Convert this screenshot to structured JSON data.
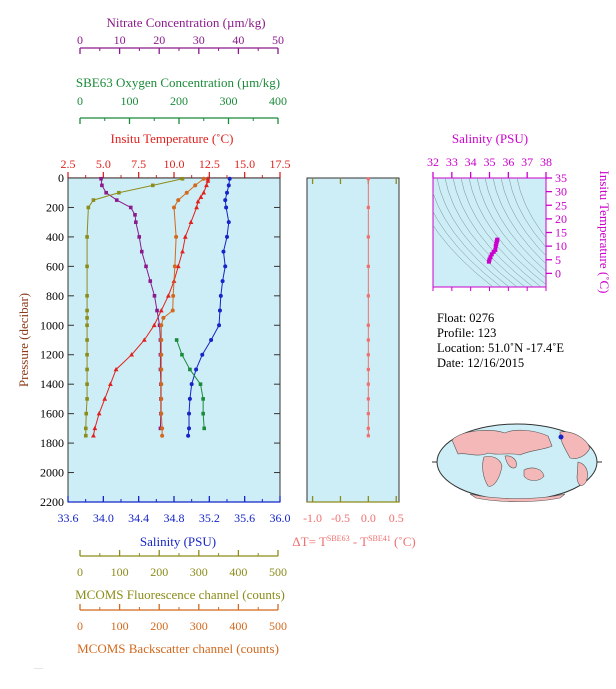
{
  "colors": {
    "nitrate": "#8b1a8b",
    "oxygen": "#1b8a3a",
    "temperature": "#e0221f",
    "salinity_main": "#1525c8",
    "salinity_ts": "#cc00cc",
    "fluorescence": "#8c8c1a",
    "backscatter": "#d2691e",
    "delta_t": "#f07070",
    "plot_bg": "#cdeef6",
    "land": "#f4b8b8",
    "ocean": "#cdeef6"
  },
  "top_axes": {
    "nitrate": {
      "title": "Nitrate Concentration (µm/kg)",
      "ticks": [
        "0",
        "10",
        "20",
        "30",
        "40",
        "50"
      ]
    },
    "oxygen": {
      "title": "SBE63 Oxygen Concentration (µm/kg)",
      "ticks": [
        "0",
        "100",
        "200",
        "300",
        "400"
      ]
    },
    "temperature": {
      "title": "Insitu Temperature (˚C)",
      "ticks": [
        "2.5",
        "5.0",
        "7.5",
        "10.0",
        "12.5",
        "15.0",
        "17.5"
      ]
    }
  },
  "bottom_axes": {
    "salinity": {
      "title": "Salinity (PSU)",
      "ticks": [
        "33.6",
        "34.0",
        "34.4",
        "34.8",
        "35.2",
        "35.6",
        "36.0"
      ]
    },
    "fluorescence": {
      "title": "MCOMS Fluorescence channel (counts)",
      "ticks": [
        "0",
        "100",
        "200",
        "300",
        "400",
        "500"
      ]
    },
    "backscatter": {
      "title": "MCOMS Backscatter channel (counts)",
      "ticks": [
        "0",
        "100",
        "200",
        "300",
        "400",
        "500"
      ]
    }
  },
  "pressure_axis": {
    "title": "Pressure (decibar)",
    "ticks": [
      "0",
      "200",
      "400",
      "600",
      "800",
      "1000",
      "1200",
      "1400",
      "1600",
      "1800",
      "2000",
      "2200"
    ]
  },
  "delta_t_axis": {
    "title_main": "ΔT= T",
    "sup1": "SBE63",
    "mid": " - T",
    "sup2": "SBE41",
    "unit": " (˚C)",
    "ticks": [
      "-1.0",
      "-0.5",
      "0.0",
      "0.5"
    ]
  },
  "ts_plot": {
    "top_title": "Salinity (PSU)",
    "top_ticks": [
      "32",
      "33",
      "34",
      "35",
      "36",
      "37",
      "38"
    ],
    "right_title": "Insitu Temperature (˚C)",
    "right_ticks": [
      "35",
      "30",
      "25",
      "20",
      "15",
      "10",
      "5",
      "0"
    ]
  },
  "info": {
    "float_line": "Float:  0276",
    "profile_line": "Profile:  123",
    "location_line": "Location:  51.0˚N  -17.4˚E",
    "date_line": "Date:  12/16/2015"
  },
  "chart_data": [
    {
      "type": "line",
      "title": "",
      "ylabel": "Pressure (decibar)",
      "ylim": [
        2200,
        0
      ],
      "series": [
        {
          "name": "Insitu Temperature (˚C)",
          "axis": "temperature",
          "xlim": [
            2.5,
            17.5
          ],
          "pressure": [
            5,
            20,
            50,
            100,
            130,
            160,
            200,
            300,
            400,
            500,
            600,
            700,
            800,
            900,
            1000,
            1100,
            1200,
            1300,
            1400,
            1500,
            1600,
            1700,
            1750
          ],
          "values": [
            12.4,
            12.4,
            12.3,
            12.1,
            11.9,
            11.7,
            11.6,
            11.2,
            10.8,
            10.6,
            10.3,
            10.0,
            9.6,
            9.1,
            8.6,
            7.9,
            7.0,
            5.9,
            5.5,
            5.1,
            4.7,
            4.4,
            4.3
          ]
        },
        {
          "name": "Salinity (PSU)",
          "axis": "salinity",
          "xlim": [
            33.6,
            36.0
          ],
          "pressure": [
            5,
            50,
            100,
            150,
            200,
            300,
            400,
            500,
            600,
            700,
            800,
            900,
            1000,
            1100,
            1200,
            1300,
            1400,
            1500,
            1600,
            1700,
            1750
          ],
          "values": [
            35.43,
            35.42,
            35.4,
            35.38,
            35.39,
            35.42,
            35.4,
            35.36,
            35.38,
            35.35,
            35.33,
            35.32,
            35.31,
            35.22,
            35.12,
            35.05,
            35.0,
            34.98,
            34.97,
            34.97,
            34.96
          ]
        },
        {
          "name": "Nitrate Concentration (µm/kg)",
          "axis": "nitrate",
          "xlim": [
            0,
            50
          ],
          "pressure": [
            5,
            50,
            100,
            150,
            200,
            250,
            300,
            400,
            500,
            600,
            700,
            800,
            900,
            1000,
            1100,
            1200,
            1300,
            1400,
            1500,
            1600,
            1700
          ],
          "values": [
            7.8,
            8.0,
            9.0,
            11.5,
            14.8,
            15.8,
            16.0,
            16.8,
            17.4,
            18.4,
            19.4,
            20.4,
            21.0,
            21.6,
            21.8,
            21.8,
            21.8,
            21.9,
            21.9,
            21.9,
            21.8
          ]
        },
        {
          "name": "SBE63 Oxygen Concentration (µm/kg)",
          "axis": "oxygen",
          "xlim": [
            0,
            400
          ],
          "pressure": [
            1100,
            1200,
            1300,
            1400,
            1500,
            1600,
            1700
          ],
          "values": [
            205,
            215,
            230,
            250,
            255,
            255,
            257
          ]
        },
        {
          "name": "MCOMS Fluorescence channel (counts)",
          "axis": "fluorescence",
          "xlim": [
            0,
            500
          ],
          "pressure": [
            5,
            50,
            100,
            150,
            200,
            400,
            600,
            800,
            900,
            950,
            1000,
            1100,
            1200,
            1300,
            1400,
            1500,
            1600,
            1700,
            1750
          ],
          "values": [
            270,
            200,
            120,
            60,
            48,
            45,
            45,
            45,
            45,
            45,
            45,
            45,
            45,
            45,
            45,
            45,
            43,
            42,
            42
          ]
        },
        {
          "name": "MCOMS Backscatter channel (counts)",
          "axis": "backscatter",
          "xlim": [
            0,
            500
          ],
          "pressure": [
            5,
            50,
            100,
            150,
            200,
            400,
            600,
            800,
            900,
            950,
            1000,
            1100,
            1200,
            1300,
            1400,
            1500,
            1600,
            1700,
            1750
          ],
          "values": [
            320,
            300,
            280,
            260,
            250,
            255,
            252,
            248,
            247,
            225,
            220,
            220,
            220,
            220,
            220,
            220,
            220,
            222,
            222
          ]
        },
        {
          "name": "ΔT SBE63 - SBE41 (˚C)",
          "axis": "delta_t",
          "xlim": [
            -1.1,
            0.55
          ],
          "pressure": [
            5,
            200,
            400,
            600,
            800,
            1000,
            1100,
            1200,
            1300,
            1400,
            1500,
            1600,
            1700,
            1750
          ],
          "values": [
            0.0,
            0.0,
            0.0,
            0.0,
            0.0,
            0.0,
            0.0,
            0.0,
            0.0,
            0.0,
            0.0,
            0.0,
            0.0,
            0.0
          ]
        }
      ]
    },
    {
      "type": "scatter",
      "title": "",
      "xlabel": "Salinity (PSU)",
      "ylabel": "Insitu Temperature (˚C)",
      "xlim": [
        32,
        38
      ],
      "ylim": [
        -5,
        35
      ],
      "series": [
        {
          "name": "T-S",
          "x": [
            35.42,
            35.4,
            35.38,
            35.36,
            35.33,
            35.31,
            35.22,
            35.12,
            35.05,
            35.0,
            34.97
          ],
          "y": [
            12.4,
            12.1,
            11.6,
            10.8,
            10.0,
            8.6,
            7.9,
            7.0,
            5.9,
            5.1,
            4.3
          ]
        }
      ]
    }
  ]
}
